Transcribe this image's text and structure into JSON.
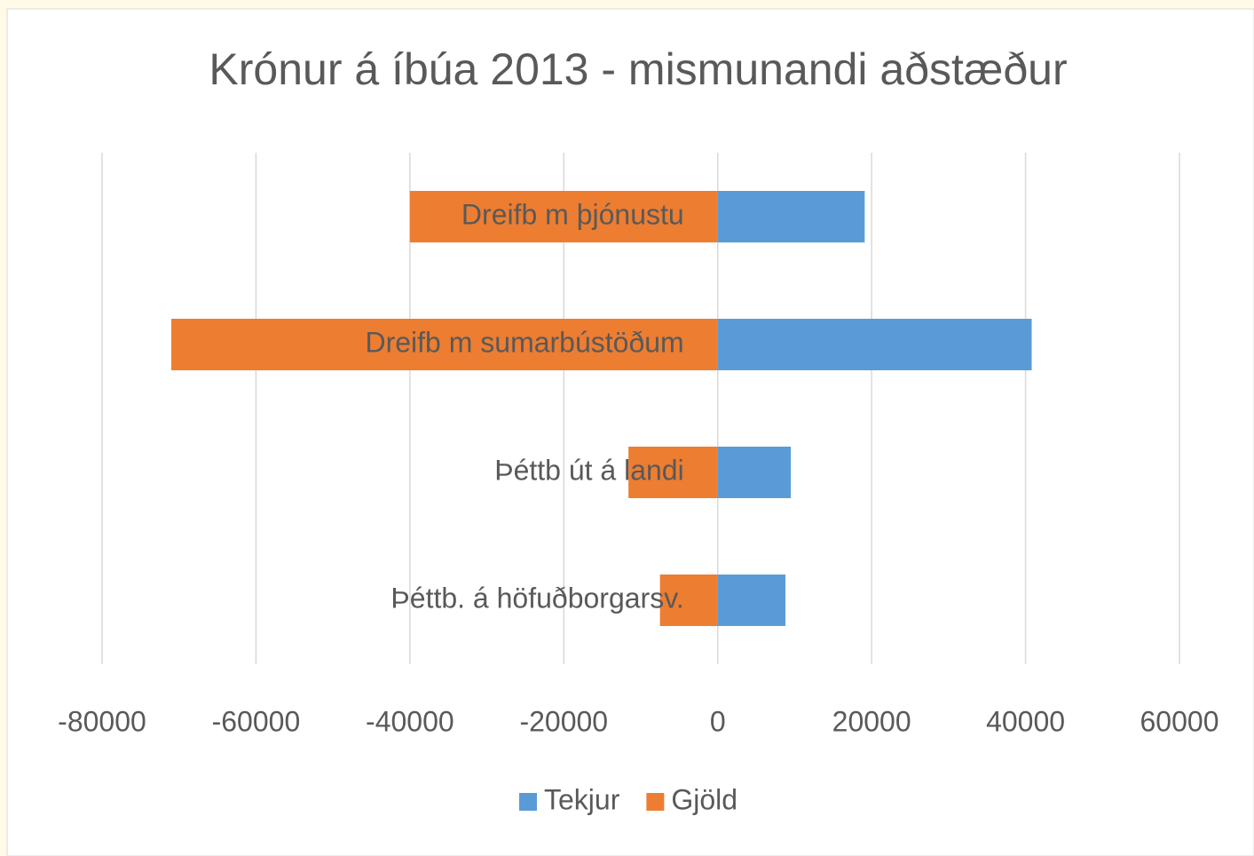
{
  "chart_data": {
    "type": "bar",
    "orientation": "horizontal",
    "stacked": true,
    "title": "Krónur á íbúa 2013 - mismunandi aðstæður",
    "categories": [
      "Dreifb m þjónustu",
      "Dreifb m sumarbústöðum",
      "Þéttb út á landi",
      "Þéttb. á höfuðborgarsv."
    ],
    "series": [
      {
        "name": "Tekjur",
        "color": "#5b9bd5",
        "values": [
          19100,
          40800,
          9500,
          8800
        ]
      },
      {
        "name": "Gjöld",
        "color": "#ed7d31",
        "values": [
          -40000,
          -71000,
          -11600,
          -7500
        ]
      }
    ],
    "xlim": [
      -80000,
      60000
    ],
    "xticks": [
      -80000,
      -60000,
      -40000,
      -20000,
      0,
      20000,
      40000,
      60000
    ],
    "grid": true,
    "legend_position": "bottom"
  }
}
